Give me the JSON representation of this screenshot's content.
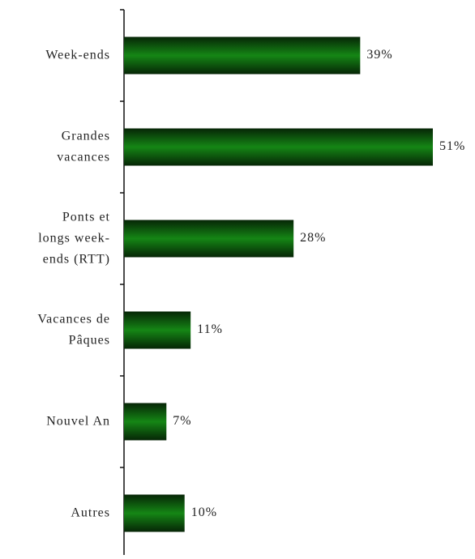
{
  "chart_data": {
    "type": "bar",
    "orientation": "horizontal",
    "categories": [
      "Week-ends",
      "Grandes\nvacances",
      "Ponts et\nlongs week-\nends (RTT)",
      "Vacances de\nPâques",
      "Nouvel An",
      "Autres"
    ],
    "values": [
      39,
      51,
      28,
      11,
      7,
      10
    ],
    "value_labels": [
      "39%",
      "51%",
      "28%",
      "11%",
      "7%",
      "10%"
    ],
    "color": "#137a13"
  }
}
